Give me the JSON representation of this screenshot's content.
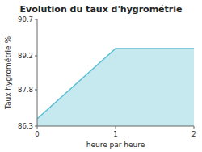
{
  "chart_data": {
    "type": "area",
    "title": "Evolution du taux d'hygrométrie",
    "xlabel": "heure par heure",
    "ylabel": "Taux hygrométrie %",
    "x": [
      0,
      1,
      2
    ],
    "values": [
      86.6,
      89.5,
      89.5
    ],
    "color": "#5bbfd4",
    "xlim": [
      0,
      2
    ],
    "ylim": [
      86.3,
      90.7
    ],
    "xticks": [
      0,
      1,
      2
    ],
    "yticks": [
      86.3,
      87.8,
      89.2,
      90.7
    ],
    "grid": false
  }
}
